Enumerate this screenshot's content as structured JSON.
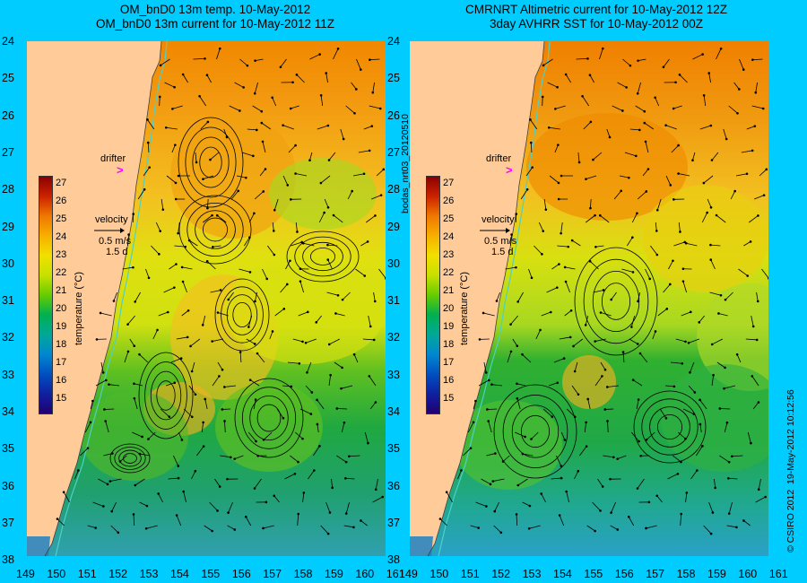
{
  "titles": {
    "left_line1": "OM_bnD0 13m temp. 10-May-2012",
    "left_line2": "OM_bnD0 13m current for 10-May-2012 11Z",
    "right_line1": "CMRNRT Altimetric current for 10-May-2012 12Z",
    "right_line2": "3day AVHRR SST for 10-May-2012 00Z"
  },
  "axes": {
    "lat_ticks": [
      "24",
      "25",
      "26",
      "27",
      "28",
      "29",
      "30",
      "31",
      "32",
      "33",
      "34",
      "35",
      "36",
      "37",
      "38"
    ],
    "lon_ticks": [
      "149",
      "150",
      "151",
      "152",
      "153",
      "154",
      "155",
      "156",
      "157",
      "158",
      "159",
      "160",
      "161"
    ]
  },
  "legend": {
    "drifter_label": "drifter",
    "drifter_marker": ">",
    "velocity_label": "velocity",
    "velocity_scale": "0.5 m/s",
    "velocity_duration": "1.5 d",
    "colorbar_label": "temperature (°C)",
    "colorbar_ticks": [
      "27",
      "26",
      "25",
      "24",
      "23",
      "22",
      "21",
      "20",
      "19",
      "18",
      "17",
      "16",
      "15"
    ]
  },
  "side_labels": {
    "run_id": "bodas_nrt03_20120510",
    "copyright": "© CSIRO 2012",
    "timestamp": "19-May-2012 10:12:56"
  },
  "colors": {
    "background": "#00ccff",
    "land": "#ffcc99",
    "drifter": "#ff00ff",
    "coast_line": "#4fd0c8",
    "colorbar_stops": [
      "#8b0000",
      "#cc2200",
      "#f07800",
      "#f7b000",
      "#f0e000",
      "#c8e000",
      "#66cc00",
      "#00b050",
      "#00a898",
      "#0088d0",
      "#0050c0",
      "#1020a0",
      "#200070"
    ]
  }
}
